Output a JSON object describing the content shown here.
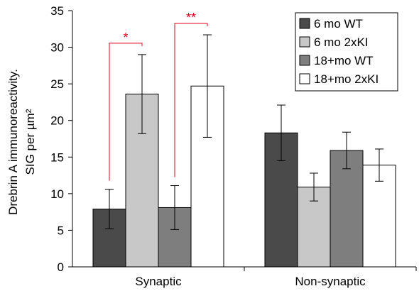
{
  "chart_data": {
    "type": "bar",
    "categories": [
      "Synaptic",
      "Non-synaptic"
    ],
    "series": [
      {
        "name": "6 mo WT",
        "values": [
          7.9,
          18.3
        ],
        "errors": [
          2.7,
          3.8
        ],
        "color": "#4a4a4a"
      },
      {
        "name": "6 mo 2xKI",
        "values": [
          23.6,
          10.9
        ],
        "errors": [
          5.4,
          1.9
        ],
        "color": "#c8c8c8"
      },
      {
        "name": "18+mo WT",
        "values": [
          8.1,
          15.9
        ],
        "errors": [
          3.0,
          2.5
        ],
        "color": "#7e7e7e"
      },
      {
        "name": "18+mo 2xKI",
        "values": [
          24.7,
          13.9
        ],
        "errors": [
          7.0,
          2.2
        ],
        "color": "#ffffff"
      }
    ],
    "ylabel_line1": "Drebrin A immunoreactivity.",
    "ylabel_line2": "SIG per µm²",
    "ylim": [
      0,
      35
    ],
    "yticks": [
      0,
      5,
      10,
      15,
      20,
      25,
      30,
      35
    ],
    "legend_position": "top-right",
    "grid": false,
    "significance": [
      {
        "label": "*",
        "category": 0,
        "from_series": 0,
        "to_series": 1,
        "color": "#e0001b"
      },
      {
        "label": "**",
        "category": 0,
        "from_series": 2,
        "to_series": 3,
        "color": "#e0001b"
      }
    ]
  }
}
